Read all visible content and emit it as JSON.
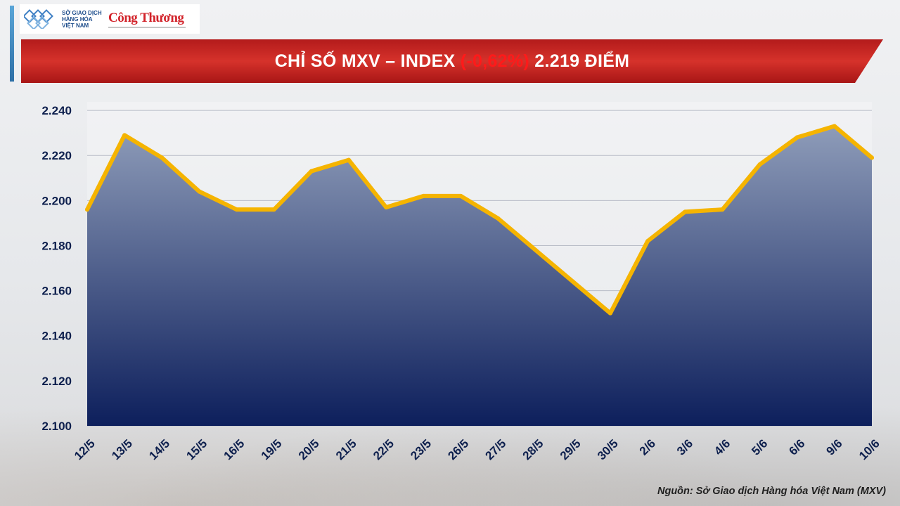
{
  "header": {
    "mxv_logo_text": "SỞ GIAO DỊCH HÀNG HÓA VIỆT NAM",
    "partner_logo_text": "Công Thương"
  },
  "title": {
    "prefix": "CHỈ SỐ MXV – INDEX ",
    "change": "(-0,62%)",
    "suffix": " 2.219 ĐIỂM",
    "change_color": "#ff1a1a"
  },
  "source": "Nguồn: Sở Giao dịch Hàng hóa Việt Nam (MXV)",
  "colors": {
    "line": "#f5b400",
    "area_top": "#8e9cb9",
    "area_bottom": "#0d1f5c",
    "banner": "#c62828",
    "axis_text": "#0d1f4d"
  },
  "chart_data": {
    "type": "area",
    "categories": [
      "12/5",
      "13/5",
      "14/5",
      "15/5",
      "16/5",
      "19/5",
      "20/5",
      "21/5",
      "22/5",
      "23/5",
      "26/5",
      "27/5",
      "28/5",
      "29/5",
      "30/5",
      "2/6",
      "3/6",
      "4/6",
      "5/6",
      "6/6",
      "9/6",
      "10/6"
    ],
    "series": [
      {
        "values": [
          2196,
          2229,
          2219,
          2204,
          2196,
          2196,
          2213,
          2218,
          2197,
          2202,
          2202,
          2192,
          2178,
          2164,
          2150,
          2182,
          2195,
          2196,
          2216,
          2228,
          2233,
          2219
        ]
      }
    ],
    "yticks": [
      "2.100",
      "2.120",
      "2.140",
      "2.160",
      "2.180",
      "2.200",
      "2.220",
      "2.240"
    ],
    "ylim": [
      2100,
      2250
    ],
    "grid": true,
    "legend": "none"
  }
}
